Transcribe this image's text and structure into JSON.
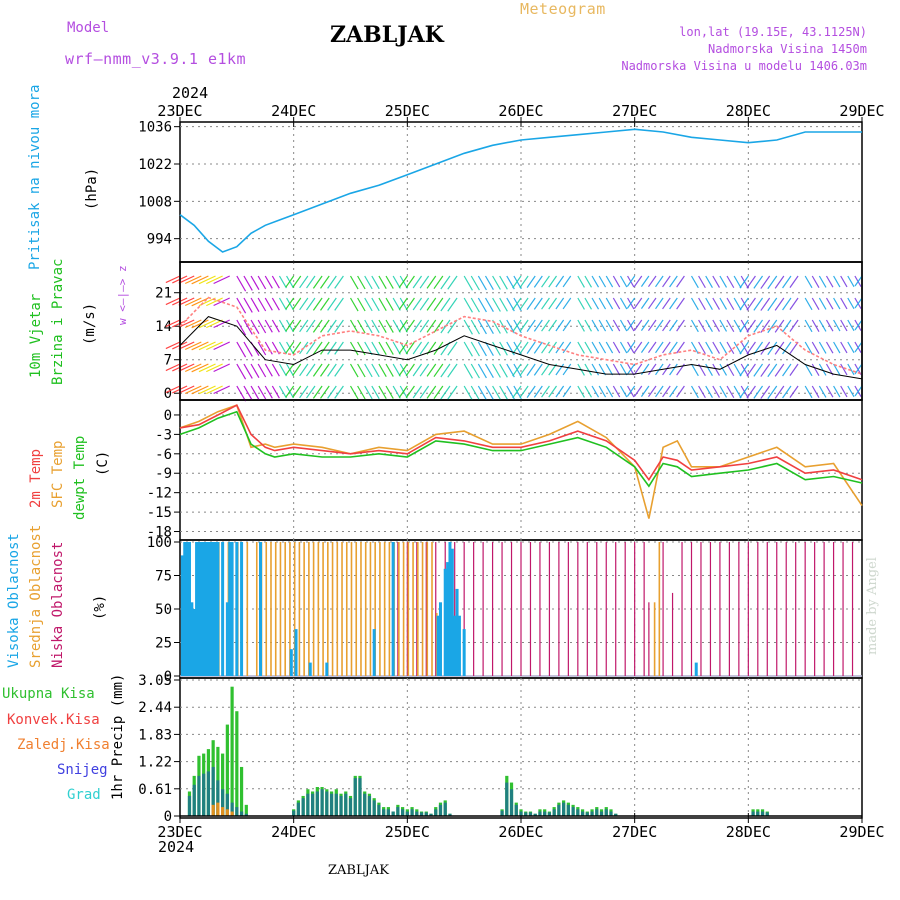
{
  "header": {
    "model_label": "Model",
    "model_name": "wrf–nmm_v3.9.1  e1km",
    "station": "ZABLJAK",
    "chart_kind": "Meteogram",
    "coords": "lon,lat (19.15E, 43.1125N)",
    "elevation": "Nadmorska Visina 1450m",
    "model_elevation": "Nadmorska Visina u modelu 1406.03m",
    "year_top": "2024",
    "year_bottom": "2024",
    "footer_station": "ZABLJAK",
    "made_by": "made by Angel"
  },
  "colors": {
    "pressure": "#1aa6e6",
    "temp2m": "#f04040",
    "sfc": "#e8a030",
    "dewp": "#20c020",
    "high_cloud": "#1aa6e6",
    "mid_cloud": "#e8a030",
    "low_cloud": "#c0186a",
    "rain_total": "#30c030",
    "rain_conv": "#f04040",
    "freezing": "#f08030",
    "snow": "#4040e0",
    "hail": "#30d0d0",
    "purple": "#b44ee0"
  },
  "chart_data": [
    {
      "type": "line",
      "panel": "pressure",
      "x_ticks": [
        "23DEC",
        "24DEC",
        "25DEC",
        "26DEC",
        "27DEC",
        "28DEC",
        "29DEC"
      ],
      "ylabel_1": "Pritisak na nivou mora",
      "ylabel_2": "(hPa)",
      "y_ticks": [
        994,
        1008,
        1022,
        1036
      ],
      "ylim": [
        986,
        1037
      ],
      "x_hours": [
        0,
        3,
        6,
        9,
        12,
        15,
        18,
        21,
        24,
        30,
        36,
        42,
        48,
        54,
        60,
        66,
        72,
        78,
        84,
        90,
        96,
        102,
        108,
        114,
        120,
        126,
        132,
        138,
        144
      ],
      "values": [
        1003,
        999,
        993,
        989,
        991,
        996,
        999,
        1001,
        1003,
        1007,
        1011,
        1014,
        1018,
        1022,
        1026,
        1029,
        1031,
        1032,
        1033,
        1034,
        1035,
        1034,
        1032,
        1031,
        1030,
        1031,
        1034,
        1034,
        1034
      ]
    },
    {
      "type": "line",
      "panel": "wind",
      "ylabel_1": "10m Vjetar",
      "ylabel_2": "Brzina i Pravac",
      "ylabel_3": "(m/s)",
      "compass": "w <–|–> z",
      "y_ticks": [
        0,
        7,
        14,
        21
      ],
      "ylim": [
        -1,
        27
      ],
      "x_hours": [
        0,
        6,
        12,
        18,
        24,
        30,
        36,
        42,
        48,
        54,
        60,
        66,
        72,
        78,
        84,
        90,
        96,
        102,
        108,
        114,
        120,
        126,
        132,
        138,
        144
      ],
      "speed": [
        10,
        16,
        14,
        7,
        6,
        9,
        9,
        8,
        7,
        9,
        12,
        10,
        8,
        6,
        5,
        4,
        4,
        5,
        6,
        5,
        8,
        10,
        6,
        4,
        3
      ],
      "gust": [
        14,
        20,
        18,
        9,
        8,
        12,
        13,
        12,
        10,
        13,
        16,
        15,
        12,
        10,
        8,
        7,
        6,
        8,
        9,
        7,
        12,
        14,
        9,
        6,
        4
      ]
    },
    {
      "type": "line",
      "panel": "temperature",
      "ylabel_1": "2m Temp",
      "ylabel_2": "SFC Temp",
      "ylabel_3": "dewpt Temp",
      "ylabel_4": "(C)",
      "y_ticks": [
        0,
        -3,
        -6,
        -9,
        -12,
        -15,
        -18
      ],
      "ylim": [
        -19,
        2
      ],
      "x_hours": [
        0,
        4,
        8,
        12,
        15,
        18,
        20,
        24,
        30,
        36,
        42,
        48,
        54,
        60,
        66,
        72,
        78,
        84,
        90,
        96,
        99,
        102,
        105,
        108,
        114,
        120,
        126,
        132,
        138,
        144
      ],
      "temp_2m": [
        -2,
        -1.5,
        0,
        1.5,
        -3,
        -5,
        -5.5,
        -5,
        -5.5,
        -6,
        -5.5,
        -6,
        -3.5,
        -4,
        -5,
        -5,
        -4,
        -2.5,
        -4,
        -7,
        -10,
        -6.5,
        -7,
        -8.5,
        -8,
        -7.5,
        -6.5,
        -9,
        -8.5,
        -10
      ],
      "temp_sfc": [
        -2,
        -1,
        0.5,
        1.5,
        -5,
        -4.5,
        -5,
        -4.5,
        -5,
        -6,
        -5,
        -5.5,
        -3,
        -2.5,
        -4.5,
        -4.5,
        -3,
        -1,
        -3.5,
        -8,
        -16,
        -5,
        -4,
        -8,
        -8,
        -6.5,
        -5,
        -8,
        -7.5,
        -14
      ],
      "dewpoint": [
        -3,
        -2,
        -0.5,
        0.5,
        -4.5,
        -6,
        -6.5,
        -6,
        -6.5,
        -6.5,
        -6,
        -6.5,
        -4,
        -4.5,
        -5.5,
        -5.5,
        -4.5,
        -3.5,
        -5,
        -8,
        -11,
        -7.5,
        -8,
        -9.5,
        -9,
        -8.5,
        -7.5,
        -10,
        -9.5,
        -10.5
      ]
    },
    {
      "type": "bar",
      "panel": "clouds",
      "ylabel_1": "Visoka Oblacnost",
      "ylabel_2": "Srednja Oblacnost",
      "ylabel_3": "Niska Oblacnost",
      "ylabel_4": "(%)",
      "y_ticks": [
        0,
        25,
        50,
        75,
        100
      ],
      "ylim": [
        0,
        100
      ],
      "high_hours": [
        0.5,
        1,
        1.5,
        2,
        2.5,
        3,
        3.5,
        4,
        4.5,
        5,
        5.5,
        6,
        6.5,
        7,
        7.5,
        8,
        9,
        10,
        10.5,
        11,
        12,
        13,
        17,
        23.5,
        24.5,
        27.5,
        31,
        41,
        45,
        54.5,
        55,
        56,
        56.5,
        57,
        57.5,
        58,
        58.5,
        59,
        60,
        109
      ],
      "high_values": [
        90,
        100,
        100,
        100,
        55,
        50,
        100,
        100,
        100,
        100,
        100,
        100,
        100,
        100,
        100,
        100,
        100,
        55,
        100,
        100,
        100,
        100,
        100,
        20,
        35,
        10,
        10,
        35,
        100,
        45,
        55,
        80,
        85,
        100,
        95,
        45,
        65,
        45,
        35,
        10
      ],
      "mid_hours": [
        6,
        8,
        10,
        12,
        14,
        16,
        17,
        18,
        19,
        20,
        21,
        22,
        23,
        24,
        25,
        26,
        27,
        28,
        29,
        30,
        31,
        32,
        33,
        34,
        35,
        36,
        37,
        38,
        39,
        40,
        41,
        42,
        43,
        44,
        45,
        46,
        47,
        48,
        49,
        50,
        51,
        52,
        53,
        54,
        100,
        101
      ],
      "mid_values": [
        100,
        100,
        100,
        100,
        100,
        100,
        100,
        100,
        100,
        100,
        100,
        100,
        100,
        100,
        100,
        100,
        100,
        100,
        100,
        100,
        100,
        100,
        100,
        100,
        100,
        100,
        100,
        100,
        100,
        100,
        100,
        100,
        100,
        100,
        100,
        100,
        100,
        100,
        100,
        100,
        100,
        100,
        100,
        47,
        55,
        100
      ],
      "low_hours": [
        46,
        48,
        50,
        52,
        54,
        56,
        58,
        60,
        62,
        64,
        66,
        68,
        70,
        72,
        74,
        76,
        78,
        80,
        82,
        84,
        86,
        88,
        90,
        92,
        94,
        96,
        98,
        99,
        102,
        104,
        106,
        108,
        110,
        112,
        114,
        116,
        118,
        120,
        122,
        124,
        126,
        128,
        130,
        132,
        134,
        136,
        138,
        140,
        142
      ],
      "low_values": [
        100,
        100,
        100,
        100,
        100,
        100,
        100,
        100,
        100,
        100,
        100,
        100,
        100,
        100,
        100,
        100,
        100,
        100,
        100,
        100,
        100,
        100,
        100,
        100,
        100,
        100,
        100,
        55,
        100,
        62,
        100,
        100,
        100,
        100,
        100,
        100,
        100,
        100,
        100,
        100,
        100,
        100,
        100,
        100,
        100,
        100,
        100,
        100,
        100
      ]
    },
    {
      "type": "bar",
      "panel": "precipitation",
      "legend": [
        "Ukupna Kisa",
        "Konvek.Kisa",
        "Zaledj.Kisa",
        "Snijeg",
        "Grad"
      ],
      "ylabel_1": "1hr Precip (mm)",
      "y_ticks": [
        0,
        0.61,
        1.22,
        1.83,
        2.44,
        3.05
      ],
      "ylim": [
        0,
        3.05
      ],
      "x_hours": [
        2,
        3,
        4,
        5,
        6,
        7,
        8,
        9,
        10,
        11,
        12,
        13,
        14,
        24,
        25,
        26,
        27,
        28,
        29,
        30,
        31,
        32,
        33,
        34,
        35,
        36,
        37,
        38,
        39,
        40,
        41,
        42,
        43,
        44,
        45,
        46,
        47,
        48,
        49,
        50,
        51,
        52,
        53,
        54,
        55,
        56,
        57,
        68,
        69,
        70,
        71,
        72,
        73,
        74,
        75,
        76,
        77,
        78,
        79,
        80,
        81,
        82,
        83,
        84,
        85,
        86,
        87,
        88,
        89,
        90,
        91,
        92,
        121,
        122,
        123,
        124
      ],
      "total": [
        0.55,
        0.9,
        1.35,
        1.4,
        1.5,
        1.7,
        1.55,
        1.4,
        2.05,
        2.9,
        2.35,
        1.1,
        0.25,
        0.15,
        0.35,
        0.45,
        0.6,
        0.55,
        0.65,
        0.65,
        0.6,
        0.55,
        0.6,
        0.5,
        0.55,
        0.45,
        0.9,
        0.9,
        0.55,
        0.5,
        0.4,
        0.3,
        0.2,
        0.2,
        0.1,
        0.25,
        0.2,
        0.15,
        0.2,
        0.15,
        0.1,
        0.1,
        0.05,
        0.2,
        0.3,
        0.35,
        0.05,
        0.15,
        0.9,
        0.75,
        0.3,
        0.15,
        0.1,
        0.1,
        0.05,
        0.15,
        0.15,
        0.1,
        0.2,
        0.3,
        0.35,
        0.3,
        0.25,
        0.2,
        0.15,
        0.1,
        0.15,
        0.2,
        0.15,
        0.2,
        0.15,
        0.05,
        0.15,
        0.15,
        0.15,
        0.1
      ],
      "snow": [
        0.45,
        0.7,
        0.9,
        0.95,
        1.0,
        1.1,
        0.8,
        0.6,
        0.5,
        0.3,
        0.2,
        0.1,
        0.05,
        0.12,
        0.3,
        0.4,
        0.5,
        0.5,
        0.55,
        0.6,
        0.55,
        0.5,
        0.5,
        0.45,
        0.5,
        0.4,
        0.85,
        0.85,
        0.5,
        0.45,
        0.35,
        0.25,
        0.15,
        0.15,
        0.1,
        0.2,
        0.15,
        0.1,
        0.15,
        0.1,
        0.08,
        0.08,
        0.05,
        0.15,
        0.25,
        0.3,
        0.05,
        0.12,
        0.75,
        0.6,
        0.25,
        0.1,
        0.08,
        0.08,
        0.05,
        0.1,
        0.1,
        0.08,
        0.15,
        0.25,
        0.3,
        0.25,
        0.2,
        0.15,
        0.1,
        0.08,
        0.1,
        0.15,
        0.1,
        0.15,
        0.1,
        0.05,
        0.1,
        0.1,
        0.1,
        0.08
      ],
      "convective": [
        0,
        0,
        0,
        0,
        0,
        0.25,
        0.3,
        0.2,
        0.15,
        0.1,
        0,
        0,
        0,
        0,
        0,
        0,
        0,
        0,
        0,
        0,
        0,
        0,
        0,
        0,
        0,
        0,
        0,
        0,
        0,
        0,
        0,
        0,
        0,
        0,
        0,
        0,
        0,
        0,
        0,
        0,
        0,
        0,
        0,
        0,
        0,
        0,
        0,
        0,
        0,
        0,
        0,
        0,
        0,
        0,
        0,
        0,
        0,
        0,
        0,
        0,
        0,
        0,
        0,
        0,
        0,
        0,
        0,
        0,
        0,
        0,
        0,
        0,
        0,
        0,
        0,
        0
      ]
    }
  ]
}
